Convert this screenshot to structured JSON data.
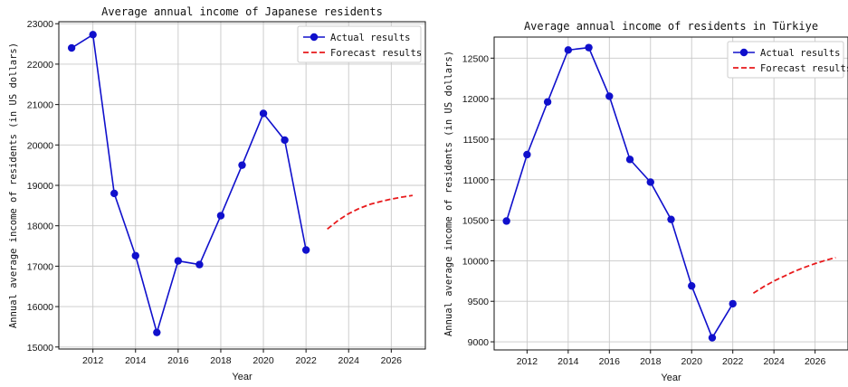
{
  "chart_data": [
    {
      "type": "line",
      "title": "Average annual income of Japanese residents",
      "xlabel": "Year",
      "ylabel": "Annual average income of residents (in US dollars)",
      "xlim": [
        2010.4,
        2027.6
      ],
      "ylim": [
        14950,
        23050
      ],
      "xticks": [
        2012,
        2014,
        2016,
        2018,
        2020,
        2022,
        2024,
        2026
      ],
      "yticks": [
        15000,
        16000,
        17000,
        18000,
        19000,
        20000,
        21000,
        22000,
        23000
      ],
      "grid": true,
      "legend": "top-right",
      "series": [
        {
          "name": "Actual results",
          "style": "solid-markers",
          "color": "#1010cc",
          "x": [
            2011,
            2012,
            2013,
            2014,
            2015,
            2016,
            2017,
            2018,
            2019,
            2020,
            2021,
            2022
          ],
          "y": [
            22400,
            22730,
            18800,
            17260,
            15360,
            17130,
            17040,
            18250,
            19500,
            20780,
            20120,
            17400
          ]
        },
        {
          "name": "Forecast results",
          "style": "dashed",
          "color": "#e8191b",
          "x": [
            2023,
            2023.5,
            2024,
            2024.5,
            2025,
            2025.5,
            2026,
            2026.5,
            2027
          ],
          "y": [
            17920,
            18130,
            18300,
            18430,
            18530,
            18600,
            18660,
            18710,
            18750
          ]
        }
      ]
    },
    {
      "type": "line",
      "title": "Average annual income of residents in Türkiye",
      "xlabel": "Year",
      "ylabel": "Annual average income of residents (in US dollars)",
      "xlim": [
        2010.4,
        2027.6
      ],
      "ylim": [
        8900,
        12760
      ],
      "xticks": [
        2012,
        2014,
        2016,
        2018,
        2020,
        2022,
        2024,
        2026
      ],
      "yticks": [
        9000,
        9500,
        10000,
        10500,
        11000,
        11500,
        12000,
        12500
      ],
      "grid": true,
      "legend": "top-right",
      "series": [
        {
          "name": "Actual results",
          "style": "solid-markers",
          "color": "#1010cc",
          "x": [
            2011,
            2012,
            2013,
            2014,
            2015,
            2016,
            2017,
            2018,
            2019,
            2020,
            2021,
            2022
          ],
          "y": [
            10490,
            11310,
            11960,
            12600,
            12630,
            12030,
            11250,
            10970,
            10510,
            9690,
            9050,
            9470
          ]
        },
        {
          "name": "Forecast results",
          "style": "dashed",
          "color": "#e8191b",
          "x": [
            2023,
            2023.5,
            2024,
            2024.5,
            2025,
            2025.5,
            2026,
            2026.5,
            2027
          ],
          "y": [
            9600,
            9680,
            9750,
            9810,
            9870,
            9920,
            9965,
            10005,
            10040
          ]
        }
      ]
    }
  ]
}
